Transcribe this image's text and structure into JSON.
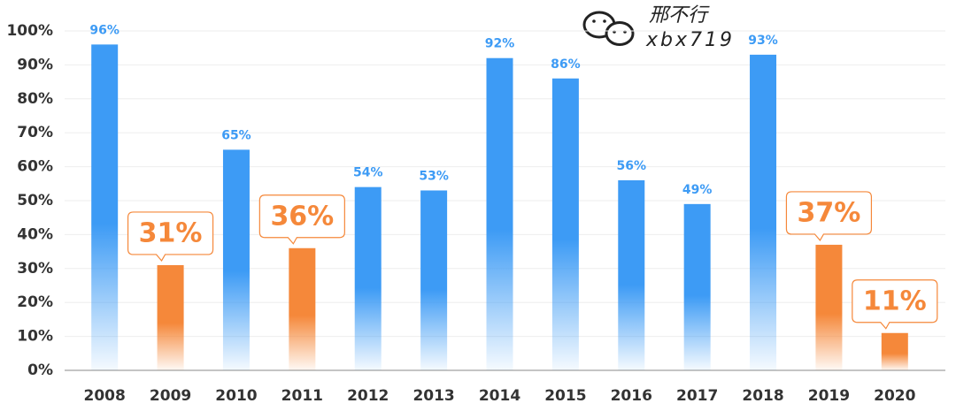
{
  "chart_data": {
    "type": "bar",
    "categories": [
      "2008",
      "2009",
      "2010",
      "2011",
      "2012",
      "2013",
      "2014",
      "2015",
      "2016",
      "2017",
      "2018",
      "2019",
      "2020"
    ],
    "values": [
      96,
      31,
      65,
      36,
      54,
      53,
      92,
      86,
      56,
      49,
      93,
      37,
      11
    ],
    "value_labels": [
      "96%",
      "31%",
      "65%",
      "36%",
      "54%",
      "53%",
      "92%",
      "86%",
      "56%",
      "49%",
      "93%",
      "37%",
      "11%"
    ],
    "color": "#3d9bf5",
    "highlight_color": "#f5883a",
    "colors": [
      "#3d9bf5",
      "#f5883a",
      "#3d9bf5",
      "#f5883a",
      "#3d9bf5",
      "#3d9bf5",
      "#3d9bf5",
      "#3d9bf5",
      "#3d9bf5",
      "#3d9bf5",
      "#3d9bf5",
      "#f5883a",
      "#f5883a"
    ],
    "ylim": [
      0,
      100
    ],
    "yticks": [
      {
        "value": 0,
        "label": "0%"
      },
      {
        "value": 10,
        "label": "10%"
      },
      {
        "value": 20,
        "label": "20%"
      },
      {
        "value": 30,
        "label": "30%"
      },
      {
        "value": 40,
        "label": "40%"
      },
      {
        "value": 50,
        "label": "50%"
      },
      {
        "value": 60,
        "label": "60%"
      },
      {
        "value": 70,
        "label": "70%"
      },
      {
        "value": 80,
        "label": "80%"
      },
      {
        "value": 90,
        "label": "90%"
      },
      {
        "value": 100,
        "label": "100%"
      }
    ],
    "grid": true,
    "watermark": {
      "name": "邢不行",
      "id": "xbx719"
    }
  }
}
